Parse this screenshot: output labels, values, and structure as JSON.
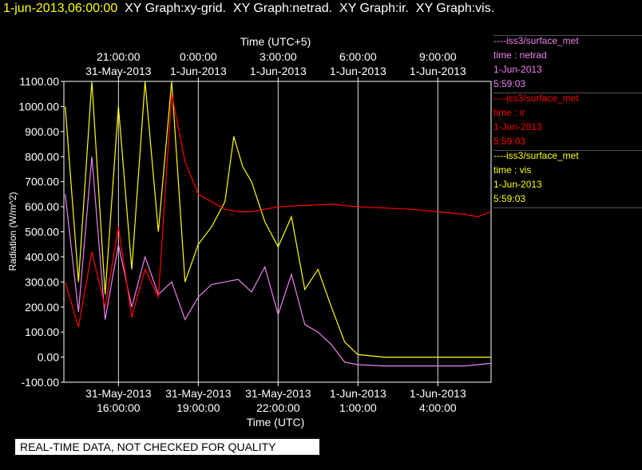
{
  "header": {
    "datetime": "1-jun-2013,06:00:00",
    "titles": [
      "XY Graph:xy-grid.",
      "XY Graph:netrad.",
      "XY Graph:ir.",
      "XY Graph:vis."
    ]
  },
  "legend": [
    {
      "source": "----iss3/surface_met",
      "field": "time : netrad",
      "date": "1-Jun-2013",
      "time": "5:59:03",
      "color": "#ee82ee"
    },
    {
      "source": "----iss3/surface_met",
      "field": "time : ir",
      "date": "1-Jun-2013",
      "time": "5:59:03",
      "color": "#ff0000"
    },
    {
      "source": "----iss3/surface_met",
      "field": "time : vis",
      "date": "1-Jun-2013",
      "time": "5:59:03",
      "color": "#ffff00"
    }
  ],
  "note": "REAL-TIME DATA, NOT CHECKED FOR QUALITY",
  "colors": {
    "background": "#000000",
    "axes": "#ffffff",
    "grid": "#ffffff",
    "header_date": "#ffff00"
  },
  "chart_data": {
    "type": "line",
    "xlabel": "Time (UTC)",
    "x2label": "Time (UTC+5)",
    "ylabel": "Radiation  (W/m^2)",
    "xlim": [
      "2013-05-31 13:57",
      "2013-06-01 06:00"
    ],
    "ylim": [
      -100,
      1100
    ],
    "yticks": [
      "-100.00",
      "0.00",
      "100.00",
      "200.00",
      "300.00",
      "400.00",
      "500.00",
      "600.00",
      "700.00",
      "800.00",
      "900.00",
      "1000.00",
      "1100.00"
    ],
    "xticks_bottom": [
      {
        "date": "31-May-2013",
        "time": "16:00:00"
      },
      {
        "date": "31-May-2013",
        "time": "19:00:00"
      },
      {
        "date": "31-May-2013",
        "time": "22:00:00"
      },
      {
        "date": "1-Jun-2013",
        "time": "1:00:00"
      },
      {
        "date": "1-Jun-2013",
        "time": "4:00:00"
      }
    ],
    "xticks_top": [
      {
        "time": "21:00:00",
        "date": "31-May-2013"
      },
      {
        "time": "0:00:00",
        "date": "1-Jun-2013"
      },
      {
        "time": "3:00:00",
        "date": "1-Jun-2013"
      },
      {
        "time": "6:00:00",
        "date": "1-Jun-2013"
      },
      {
        "time": "9:00:00",
        "date": "1-Jun-2013"
      }
    ],
    "grid": true,
    "series": [
      {
        "color": "#ffff00",
        "x": [
          "2013-05-31 14:00",
          "2013-05-31 14:30",
          "2013-05-31 15:00",
          "2013-05-31 15:30",
          "2013-05-31 16:00",
          "2013-05-31 16:30",
          "2013-05-31 17:00",
          "2013-05-31 17:30",
          "2013-05-31 18:00",
          "2013-05-31 18:30",
          "2013-05-31 19:00",
          "2013-05-31 19:30",
          "2013-05-31 20:00",
          "2013-05-31 20:20",
          "2013-05-31 20:40",
          "2013-05-31 21:00",
          "2013-05-31 21:30",
          "2013-05-31 22:00",
          "2013-05-31 22:30",
          "2013-05-31 23:00",
          "2013-05-31 23:30",
          "2013-06-01 00:00",
          "2013-06-01 00:30",
          "2013-06-01 01:00",
          "2013-06-01 02:00",
          "2013-06-01 03:00",
          "2013-06-01 04:00",
          "2013-06-01 05:00",
          "2013-06-01 06:00"
        ],
        "y": [
          1000,
          300,
          1100,
          250,
          1000,
          350,
          1100,
          500,
          1100,
          300,
          450,
          520,
          620,
          880,
          760,
          700,
          540,
          440,
          560,
          270,
          350,
          200,
          60,
          10,
          0,
          0,
          0,
          0,
          0
        ]
      },
      {
        "color": "#ee82ee",
        "x": [
          "2013-05-31 14:00",
          "2013-05-31 14:30",
          "2013-05-31 15:00",
          "2013-05-31 15:30",
          "2013-05-31 16:00",
          "2013-05-31 16:30",
          "2013-05-31 17:00",
          "2013-05-31 17:30",
          "2013-05-31 18:00",
          "2013-05-31 18:30",
          "2013-05-31 19:00",
          "2013-05-31 19:30",
          "2013-05-31 20:00",
          "2013-05-31 20:30",
          "2013-05-31 21:00",
          "2013-05-31 21:30",
          "2013-05-31 22:00",
          "2013-05-31 22:30",
          "2013-05-31 23:00",
          "2013-05-31 23:30",
          "2013-06-01 00:00",
          "2013-06-01 00:30",
          "2013-06-01 01:00",
          "2013-06-01 02:00",
          "2013-06-01 03:00",
          "2013-06-01 04:00",
          "2013-06-01 05:00",
          "2013-06-01 06:00"
        ],
        "y": [
          650,
          180,
          800,
          150,
          450,
          200,
          400,
          250,
          300,
          150,
          240,
          290,
          300,
          310,
          260,
          360,
          170,
          330,
          130,
          100,
          50,
          -20,
          -30,
          -35,
          -35,
          -35,
          -35,
          -25
        ]
      },
      {
        "color": "#ff0000",
        "x": [
          "2013-05-31 14:00",
          "2013-05-31 14:30",
          "2013-05-31 15:00",
          "2013-05-31 15:30",
          "2013-05-31 16:00",
          "2013-05-31 16:30",
          "2013-05-31 17:00",
          "2013-05-31 17:30",
          "2013-05-31 18:00",
          "2013-05-31 18:30",
          "2013-05-31 19:00",
          "2013-05-31 19:30",
          "2013-05-31 20:00",
          "2013-05-31 20:30",
          "2013-05-31 21:00",
          "2013-05-31 22:00",
          "2013-05-31 23:00",
          "2013-06-01 00:00",
          "2013-06-01 01:00",
          "2013-06-01 02:00",
          "2013-06-01 03:00",
          "2013-06-01 04:00",
          "2013-06-01 05:00",
          "2013-06-01 05:30",
          "2013-06-01 06:00"
        ],
        "y": [
          300,
          120,
          420,
          200,
          520,
          160,
          350,
          240,
          1050,
          780,
          650,
          620,
          590,
          580,
          580,
          600,
          605,
          610,
          600,
          595,
          590,
          580,
          570,
          560,
          580
        ]
      }
    ]
  }
}
